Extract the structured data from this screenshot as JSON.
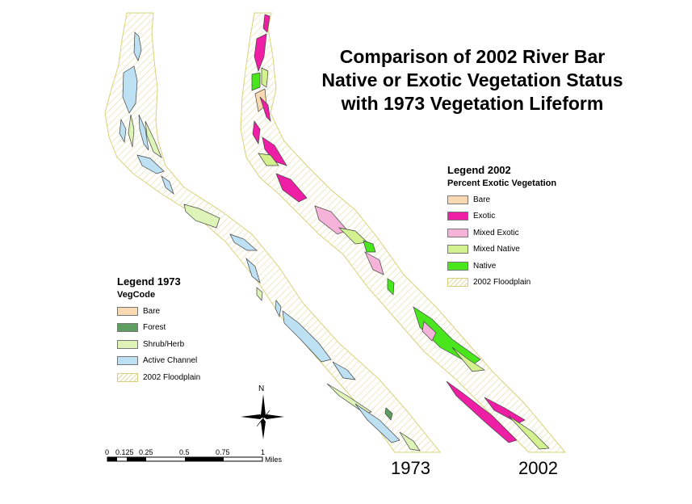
{
  "title_lines": [
    "Comparison of 2002 River Bar",
    "Native or Exotic Vegetation Status",
    "with 1973 Vegetation Lifeform"
  ],
  "legend_2002": {
    "title": "Legend 2002",
    "subtitle": "Percent Exotic Vegetation",
    "items": [
      {
        "label": "Bare",
        "color": "#f9d9b1"
      },
      {
        "label": "Exotic",
        "color": "#ee1fa4"
      },
      {
        "label": "Mixed Exotic",
        "color": "#f5b3d9"
      },
      {
        "label": "Mixed Native",
        "color": "#d3f28f"
      },
      {
        "label": "Native",
        "color": "#49e61e"
      },
      {
        "label": "2002 Floodplain",
        "color": "hatch"
      }
    ]
  },
  "legend_1973": {
    "title": "Legend 1973",
    "subtitle": "VegCode",
    "items": [
      {
        "label": "Bare",
        "color": "#f9d9b1"
      },
      {
        "label": "Forest",
        "color": "#5e9e60"
      },
      {
        "label": "Shrub/Herb",
        "color": "#def3b8"
      },
      {
        "label": "Active Channel",
        "color": "#bde0f3"
      },
      {
        "label": "2002 Floodplain",
        "color": "hatch"
      }
    ]
  },
  "year_labels": {
    "left": "1973",
    "right": "2002"
  },
  "north_label": "N",
  "scale_bar": {
    "ticks": [
      "0",
      "0.125",
      "0.25",
      "0.5",
      "0.75",
      "1"
    ],
    "units": "Miles"
  },
  "colors": {
    "floodplain_outline": "#d9d27a",
    "floodplain_hatch": "#e2dca0",
    "polygon_outline": "#444444"
  }
}
